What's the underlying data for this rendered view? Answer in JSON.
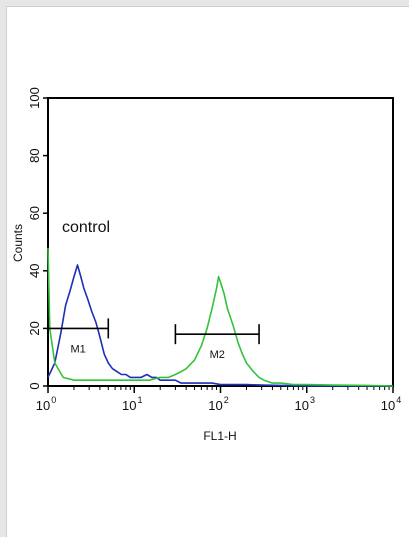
{
  "chart_data": {
    "type": "line",
    "xlabel": "FL1-H",
    "ylabel": "Counts",
    "xscale": "log",
    "xlim": [
      1,
      10000
    ],
    "ylim": [
      0,
      100
    ],
    "x_ticks": [
      {
        "value": 1,
        "base": "10",
        "exp": "0"
      },
      {
        "value": 10,
        "base": "10",
        "exp": "1"
      },
      {
        "value": 100,
        "base": "10",
        "exp": "2"
      },
      {
        "value": 1000,
        "base": "10",
        "exp": "3"
      },
      {
        "value": 10000,
        "base": "10",
        "exp": "4"
      }
    ],
    "y_ticks": [
      "0",
      "20",
      "40",
      "60",
      "80",
      "100"
    ],
    "annotation": "control",
    "gates": [
      {
        "label": "M1",
        "x1": 1.0,
        "x2": 5.0,
        "y": 20
      },
      {
        "label": "M2",
        "x1": 30,
        "x2": 280,
        "y": 18
      }
    ],
    "colors": {
      "control": "#1f2fb5",
      "sample": "#33c23a"
    },
    "series": [
      {
        "role": "control",
        "x": [
          1.0,
          1.2,
          1.4,
          1.6,
          1.8,
          2.0,
          2.2,
          2.4,
          2.6,
          2.9,
          3.2,
          3.6,
          4.0,
          4.5,
          5.0,
          5.6,
          6.3,
          7.1,
          8.0,
          9.0,
          10,
          12,
          14,
          16,
          18,
          20,
          25,
          30,
          35,
          40,
          50,
          60,
          80,
          100,
          150,
          200,
          300,
          500,
          1000,
          2000,
          5000,
          10000
        ],
        "y": [
          3,
          8,
          18,
          28,
          33,
          38,
          42,
          38,
          34,
          30,
          26,
          22,
          17,
          11,
          8,
          6,
          5,
          4,
          4,
          3,
          3,
          3,
          4,
          3,
          3,
          2,
          2,
          2,
          1,
          1,
          1,
          1,
          1,
          0.5,
          0.5,
          0.5,
          0.3,
          0.2,
          0,
          0,
          0,
          0
        ]
      },
      {
        "role": "sample",
        "x": [
          1.0,
          1.05,
          1.2,
          1.5,
          2.0,
          3.0,
          5.0,
          8.0,
          10,
          15,
          20,
          25,
          30,
          35,
          40,
          50,
          60,
          70,
          80,
          90,
          95,
          100,
          110,
          120,
          140,
          160,
          180,
          200,
          240,
          280,
          320,
          400,
          500,
          700,
          1000,
          2000,
          5000,
          10000
        ],
        "y": [
          48,
          20,
          8,
          3,
          2,
          2,
          2,
          2,
          2,
          2,
          3,
          3,
          4,
          5,
          6,
          9,
          14,
          20,
          27,
          34,
          38,
          36,
          32,
          27,
          21,
          15,
          11,
          8,
          5,
          3,
          2,
          1,
          1,
          0.5,
          0.5,
          0.3,
          0.2,
          0
        ]
      }
    ]
  }
}
